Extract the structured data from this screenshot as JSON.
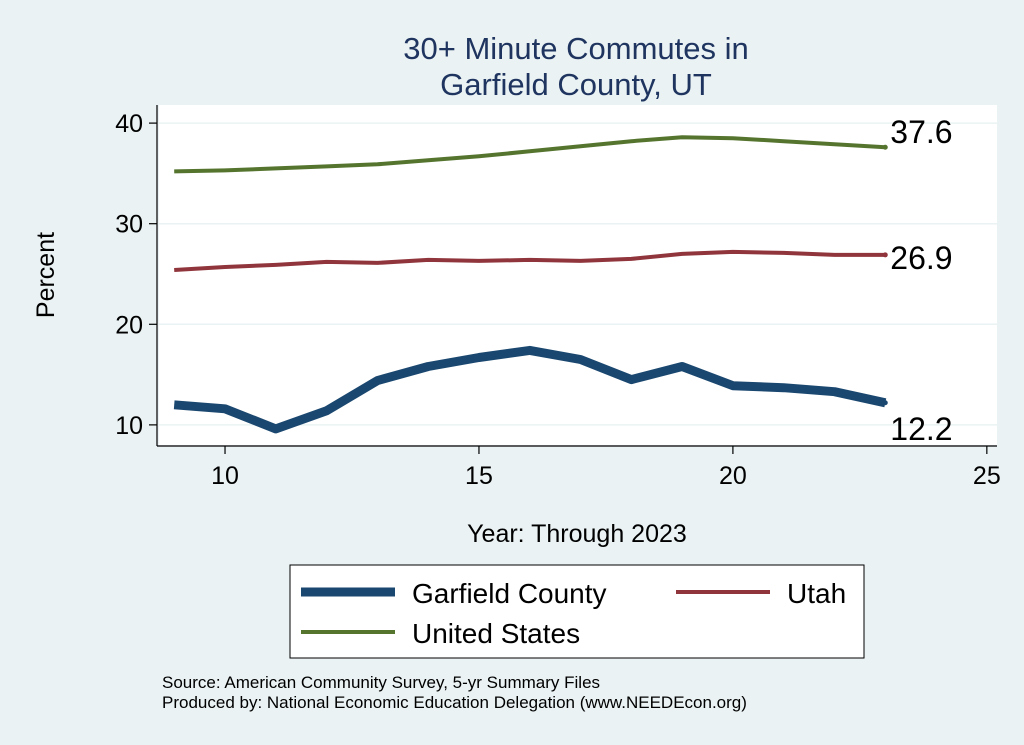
{
  "chart_data": {
    "type": "line",
    "title": [
      "30+ Minute Commutes in",
      "Garfield County, UT"
    ],
    "xlabel": "Year: Through 2023",
    "ylabel": "Percent",
    "xlim": [
      8.7,
      25.2
    ],
    "ylim": [
      8.0,
      41.8
    ],
    "xticks": [
      10,
      15,
      20,
      25
    ],
    "yticks": [
      10,
      20,
      30,
      40
    ],
    "grid": true,
    "x": [
      9,
      10,
      11,
      12,
      13,
      14,
      15,
      16,
      17,
      18,
      19,
      20,
      21,
      22,
      23
    ],
    "series": [
      {
        "name": "Garfield County",
        "color": "#1a476f",
        "values": [
          12.0,
          11.6,
          9.6,
          11.4,
          14.4,
          15.8,
          16.7,
          17.4,
          16.5,
          14.5,
          15.8,
          13.9,
          13.7,
          13.3,
          12.2
        ],
        "end_label": "12.2"
      },
      {
        "name": "Utah",
        "color": "#90353b",
        "values": [
          25.4,
          25.7,
          25.9,
          26.2,
          26.1,
          26.4,
          26.3,
          26.4,
          26.3,
          26.5,
          27.0,
          27.2,
          27.1,
          26.9,
          26.9
        ],
        "end_label": "26.9"
      },
      {
        "name": "United States",
        "color": "#55752f",
        "values": [
          35.2,
          35.3,
          35.5,
          35.7,
          35.9,
          36.3,
          36.7,
          37.2,
          37.7,
          38.2,
          38.6,
          38.5,
          38.2,
          37.9,
          37.6
        ],
        "end_label": "37.6"
      }
    ],
    "legend": {
      "position": "bottom",
      "entries": [
        "Garfield County",
        "Utah",
        "United States"
      ]
    },
    "source": [
      "Source: American Community Survey, 5-yr Summary Files",
      "Produced by: National Economic Education Delegation (www.NEEDEcon.org)"
    ]
  }
}
